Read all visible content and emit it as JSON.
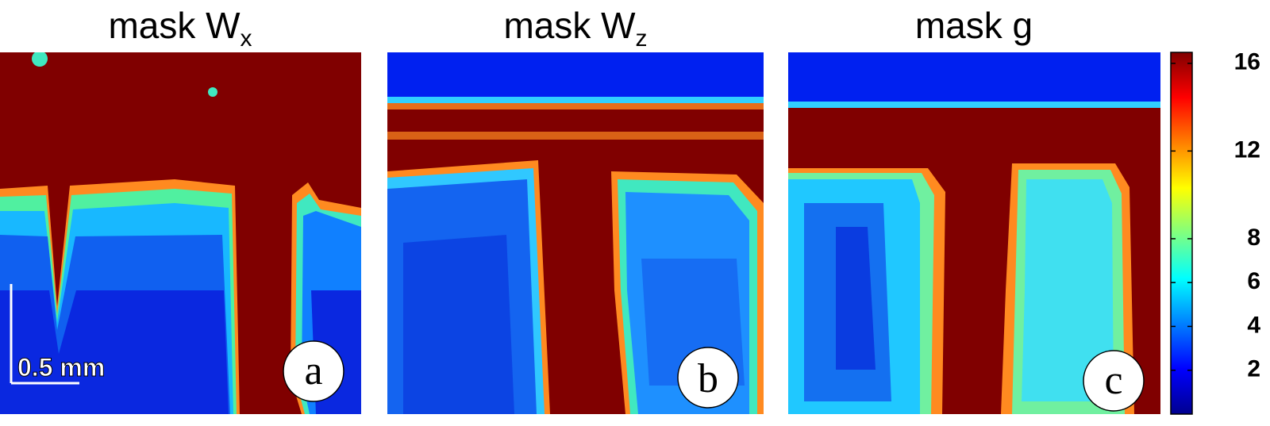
{
  "panels": [
    {
      "title": "mask W",
      "subscript": "x",
      "label": "a"
    },
    {
      "title": "mask W",
      "subscript": "z",
      "label": "b"
    },
    {
      "title": "mask g",
      "label": "c"
    }
  ],
  "scale_bar": "0.5 mm",
  "colorbar": {
    "type": "colorbar",
    "ylim": [
      0,
      16.5
    ],
    "yticks": [
      2,
      4,
      6,
      8,
      12,
      16
    ]
  }
}
